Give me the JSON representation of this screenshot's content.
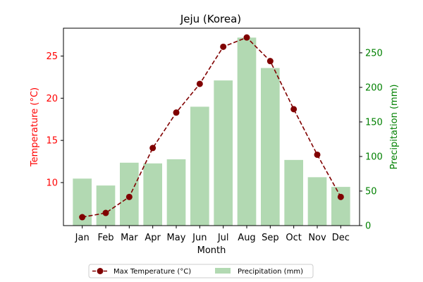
{
  "chart_data": {
    "type": "bar",
    "title": "Jeju (Korea)",
    "xlabel": "Month",
    "categories": [
      "Jan",
      "Feb",
      "Mar",
      "Apr",
      "May",
      "Jun",
      "Jul",
      "Aug",
      "Sep",
      "Oct",
      "Nov",
      "Dec"
    ],
    "series": [
      {
        "name": "Max Temperature (°C)",
        "kind": "line",
        "axis": "left",
        "values": [
          5.9,
          6.4,
          8.3,
          14.1,
          18.3,
          21.7,
          26.1,
          27.2,
          24.4,
          18.7,
          13.3,
          8.3
        ],
        "color": "#800000"
      },
      {
        "name": "Precipitation (mm)",
        "kind": "bar",
        "axis": "right",
        "values": [
          68,
          58,
          91,
          90,
          96,
          172,
          210,
          272,
          228,
          95,
          70,
          56
        ],
        "color": "#b2d9b2"
      }
    ],
    "y_left": {
      "label": "Temperature (°C)",
      "color": "#ff0000",
      "ylim": [
        4.9,
        28.3
      ],
      "ticks": [
        10,
        15,
        20,
        25
      ]
    },
    "y_right": {
      "label": "Precipitation (mm)",
      "color": "#008000",
      "ylim": [
        0,
        285.6
      ],
      "ticks": [
        0,
        50,
        100,
        150,
        200,
        250
      ]
    },
    "grid": false,
    "legend_position": "bottom-center"
  }
}
